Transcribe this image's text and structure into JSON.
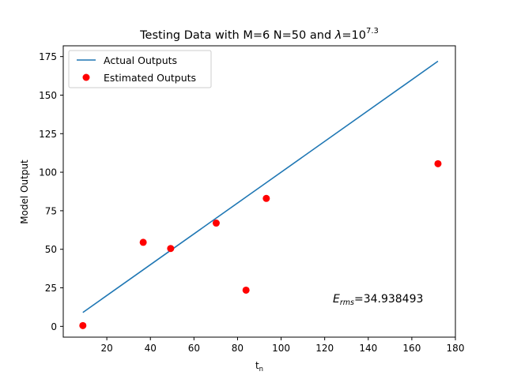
{
  "chart_data": {
    "type": "scatter",
    "title": {
      "main": "Testing Data with M=6 N=50 and ",
      "lambda": "λ",
      "equals_base": "=10",
      "exponent": "7.3"
    },
    "xlabel": {
      "base": "t",
      "sub": "n"
    },
    "ylabel": "Model Output",
    "xlim": [
      0,
      180
    ],
    "ylim": [
      -7,
      182
    ],
    "xticks": [
      20,
      40,
      60,
      80,
      100,
      120,
      140,
      160,
      180
    ],
    "yticks": [
      0,
      25,
      50,
      75,
      100,
      125,
      150,
      175
    ],
    "grid": false,
    "legend": {
      "placement": "top-left",
      "entries": [
        "Actual Outputs",
        "Estimated Outputs"
      ]
    },
    "series": [
      {
        "name": "Actual Outputs",
        "kind": "line",
        "color": "#1f77b4",
        "x": [
          9,
          36.7,
          49.3,
          70.2,
          83.9,
          93.2,
          172
        ],
        "y": [
          9,
          36.7,
          49.3,
          70.2,
          83.9,
          93.2,
          172
        ]
      },
      {
        "name": "Estimated Outputs",
        "kind": "scatter",
        "color": "#ff0000",
        "x": [
          9,
          36.7,
          49.3,
          70.2,
          83.9,
          93.2,
          172
        ],
        "y": [
          0.5,
          54.5,
          50.5,
          67,
          23.5,
          83,
          105.5
        ]
      }
    ],
    "annotation": {
      "symbol": "E",
      "sub": "rms",
      "value_text": "=34.938493"
    }
  }
}
